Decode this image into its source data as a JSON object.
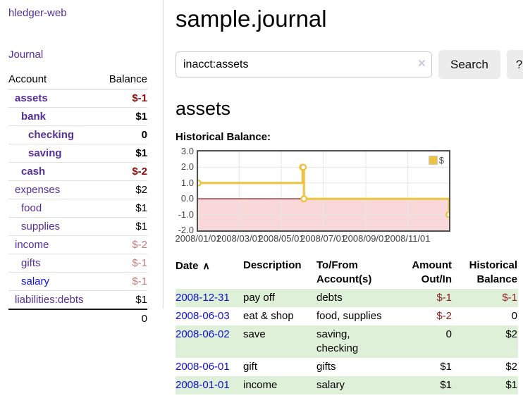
{
  "sidebar": {
    "app_title": "hledger-web",
    "journal_link": "Journal",
    "table": {
      "account_header": "Account",
      "balance_header": "Balance",
      "rows": [
        {
          "name": "assets",
          "balance": "$-1"
        },
        {
          "name": "bank",
          "balance": "$1"
        },
        {
          "name": "checking",
          "balance": "0"
        },
        {
          "name": "saving",
          "balance": "$1"
        },
        {
          "name": "cash",
          "balance": "$-2"
        },
        {
          "name": "expenses",
          "balance": "$2"
        },
        {
          "name": "food",
          "balance": "$1"
        },
        {
          "name": "supplies",
          "balance": "$1"
        },
        {
          "name": "income",
          "balance": "$-2"
        },
        {
          "name": "gifts",
          "balance": "$-1"
        },
        {
          "name": "salary",
          "balance": "$-1"
        },
        {
          "name": "liabilities:debts",
          "balance": "$1"
        }
      ],
      "total": "0"
    }
  },
  "header": {
    "title": "sample.journal"
  },
  "search": {
    "value": "inacct:assets",
    "search_button": "Search",
    "help_button": "?"
  },
  "account_page": {
    "heading": "assets",
    "chart_title": "Historical Balance:"
  },
  "icons": {
    "clear": "×",
    "sort_ascending": "∧"
  },
  "chart_data": {
    "type": "line",
    "title": "Historical Balance:",
    "series": [
      {
        "name": "$",
        "color": "#edc240",
        "step": true,
        "points": [
          [
            "2008-01-01",
            1
          ],
          [
            "2008-06-01",
            2
          ],
          [
            "2008-06-02",
            2
          ],
          [
            "2008-06-03",
            0
          ],
          [
            "2008-12-31",
            -1
          ]
        ]
      }
    ],
    "x_start": "2008-01-01",
    "x_end": "2008-12-31",
    "x_tick_labels": [
      "2008/01/01",
      "2008/03/01",
      "2008/05/01",
      "2008/07/01",
      "2008/09/01",
      "2008/11/01"
    ],
    "y_ticks": [
      "3.0",
      "2.0",
      "1.0",
      "0.0",
      "-1.0",
      "-2.0"
    ],
    "ylim": [
      -2,
      3
    ],
    "grid": true,
    "negative_region_color": "#f8d8d8",
    "zero_line_color": "#8f1d1d",
    "legend": {
      "label": "$",
      "position": "top-right"
    }
  },
  "register": {
    "headers": {
      "date": "Date",
      "description": "Description",
      "tofrom": "To/From\nAccount(s)",
      "amount": "Amount\nOut/In",
      "balance": "Historical\nBalance"
    },
    "rows": [
      {
        "date": "2008-12-31",
        "description": "pay off",
        "accounts": "debts",
        "amount": "$-1",
        "balance": "$-1"
      },
      {
        "date": "2008-06-03",
        "description": "eat & shop",
        "accounts": "food, supplies",
        "amount": "$-2",
        "balance": "0"
      },
      {
        "date": "2008-06-02",
        "description": "save",
        "accounts": "saving, checking",
        "amount": "0",
        "balance": "$2"
      },
      {
        "date": "2008-06-01",
        "description": "gift",
        "accounts": "gifts",
        "amount": "$1",
        "balance": "$2"
      },
      {
        "date": "2008-01-01",
        "description": "income",
        "accounts": "salary",
        "amount": "$1",
        "balance": "$1"
      }
    ]
  }
}
